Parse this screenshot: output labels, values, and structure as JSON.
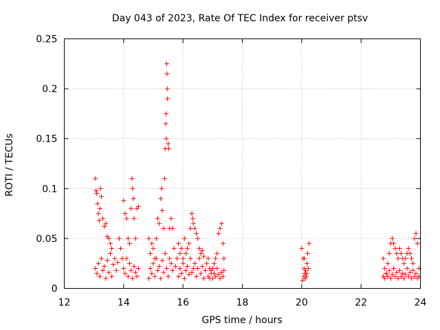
{
  "chart_data": {
    "type": "scatter",
    "title": "Day 043 of 2023, Rate Of TEC Index for receiver ptsv",
    "xlabel": "GPS time / hours",
    "ylabel": "ROTI / TECUs",
    "xlim": [
      12,
      24
    ],
    "ylim": [
      0,
      0.25
    ],
    "x_ticks": [
      12,
      14,
      16,
      18,
      20,
      22,
      24
    ],
    "x_tick_labels": [
      "12",
      "14",
      "16",
      "18",
      "20",
      "22",
      "24"
    ],
    "y_ticks": [
      0,
      0.05,
      0.1,
      0.15,
      0.2,
      0.25
    ],
    "y_tick_labels": [
      "0",
      "0.05",
      "0.1",
      "0.15",
      "0.2",
      "0.25"
    ],
    "grid": true,
    "legend": false,
    "marker": "plus",
    "series_color": "#ff0000",
    "series": [
      {
        "points": [
          [
            13.05,
            0.11
          ],
          [
            13.07,
            0.098
          ],
          [
            13.1,
            0.095
          ],
          [
            13.12,
            0.085
          ],
          [
            13.15,
            0.075
          ],
          [
            13.18,
            0.068
          ],
          [
            13.2,
            0.08
          ],
          [
            13.22,
            0.1
          ],
          [
            13.25,
            0.092
          ],
          [
            13.3,
            0.07
          ],
          [
            13.35,
            0.062
          ],
          [
            13.4,
            0.065
          ],
          [
            13.45,
            0.052
          ],
          [
            13.5,
            0.05
          ],
          [
            13.55,
            0.045
          ],
          [
            13.6,
            0.04
          ],
          [
            13.05,
            0.02
          ],
          [
            13.1,
            0.015
          ],
          [
            13.15,
            0.025
          ],
          [
            13.2,
            0.012
          ],
          [
            13.25,
            0.03
          ],
          [
            13.3,
            0.018
          ],
          [
            13.35,
            0.022
          ],
          [
            13.4,
            0.01
          ],
          [
            13.45,
            0.028
          ],
          [
            13.5,
            0.016
          ],
          [
            13.55,
            0.035
          ],
          [
            13.6,
            0.012
          ],
          [
            13.65,
            0.024
          ],
          [
            13.7,
            0.03
          ],
          [
            13.75,
            0.018
          ],
          [
            13.8,
            0.026
          ],
          [
            13.85,
            0.05
          ],
          [
            13.9,
            0.04
          ],
          [
            13.95,
            0.03
          ],
          [
            14.0,
            0.088
          ],
          [
            14.05,
            0.075
          ],
          [
            14.1,
            0.07
          ],
          [
            14.15,
            0.05
          ],
          [
            14.2,
            0.045
          ],
          [
            14.25,
            0.08
          ],
          [
            14.28,
            0.11
          ],
          [
            14.3,
            0.1
          ],
          [
            14.33,
            0.09
          ],
          [
            14.35,
            0.07
          ],
          [
            14.4,
            0.05
          ],
          [
            14.45,
            0.08
          ],
          [
            14.5,
            0.082
          ],
          [
            14.0,
            0.02
          ],
          [
            14.05,
            0.015
          ],
          [
            14.1,
            0.03
          ],
          [
            14.15,
            0.012
          ],
          [
            14.2,
            0.025
          ],
          [
            14.25,
            0.018
          ],
          [
            14.3,
            0.01
          ],
          [
            14.35,
            0.022
          ],
          [
            14.4,
            0.016
          ],
          [
            14.45,
            0.012
          ],
          [
            14.5,
            0.02
          ],
          [
            14.85,
            0.05
          ],
          [
            14.9,
            0.035
          ],
          [
            14.95,
            0.045
          ],
          [
            15.0,
            0.04
          ],
          [
            15.05,
            0.03
          ],
          [
            15.1,
            0.05
          ],
          [
            15.15,
            0.07
          ],
          [
            15.2,
            0.065
          ],
          [
            15.25,
            0.09
          ],
          [
            15.28,
            0.1
          ],
          [
            15.3,
            0.078
          ],
          [
            15.35,
            0.06
          ],
          [
            15.38,
            0.11
          ],
          [
            15.4,
            0.14
          ],
          [
            15.42,
            0.165
          ],
          [
            15.43,
            0.175
          ],
          [
            15.44,
            0.15
          ],
          [
            15.45,
            0.225
          ],
          [
            15.46,
            0.215
          ],
          [
            15.47,
            0.2
          ],
          [
            15.48,
            0.19
          ],
          [
            15.5,
            0.145
          ],
          [
            15.52,
            0.14
          ],
          [
            15.55,
            0.06
          ],
          [
            15.6,
            0.07
          ],
          [
            15.65,
            0.06
          ],
          [
            14.85,
            0.01
          ],
          [
            14.9,
            0.02
          ],
          [
            14.95,
            0.015
          ],
          [
            15.0,
            0.025
          ],
          [
            15.05,
            0.012
          ],
          [
            15.1,
            0.03
          ],
          [
            15.15,
            0.018
          ],
          [
            15.2,
            0.022
          ],
          [
            15.25,
            0.01
          ],
          [
            15.3,
            0.028
          ],
          [
            15.35,
            0.016
          ],
          [
            15.4,
            0.035
          ],
          [
            15.45,
            0.02
          ],
          [
            15.5,
            0.012
          ],
          [
            15.55,
            0.03
          ],
          [
            15.6,
            0.025
          ],
          [
            15.65,
            0.018
          ],
          [
            15.7,
            0.04
          ],
          [
            15.75,
            0.022
          ],
          [
            15.8,
            0.03
          ],
          [
            15.85,
            0.045
          ],
          [
            15.9,
            0.035
          ],
          [
            15.95,
            0.04
          ],
          [
            16.0,
            0.03
          ],
          [
            16.05,
            0.05
          ],
          [
            16.1,
            0.035
          ],
          [
            16.15,
            0.04
          ],
          [
            16.2,
            0.045
          ],
          [
            16.25,
            0.06
          ],
          [
            16.3,
            0.075
          ],
          [
            16.33,
            0.07
          ],
          [
            16.35,
            0.065
          ],
          [
            16.4,
            0.06
          ],
          [
            16.45,
            0.055
          ],
          [
            16.5,
            0.05
          ],
          [
            16.55,
            0.04
          ],
          [
            16.6,
            0.035
          ],
          [
            16.65,
            0.038
          ],
          [
            16.7,
            0.032
          ],
          [
            15.85,
            0.012
          ],
          [
            15.9,
            0.02
          ],
          [
            15.95,
            0.015
          ],
          [
            16.0,
            0.025
          ],
          [
            16.05,
            0.01
          ],
          [
            16.1,
            0.018
          ],
          [
            16.15,
            0.022
          ],
          [
            16.2,
            0.014
          ],
          [
            16.25,
            0.03
          ],
          [
            16.3,
            0.016
          ],
          [
            16.35,
            0.02
          ],
          [
            16.4,
            0.025
          ],
          [
            16.45,
            0.012
          ],
          [
            16.5,
            0.02
          ],
          [
            16.55,
            0.03
          ],
          [
            16.6,
            0.015
          ],
          [
            16.65,
            0.022
          ],
          [
            16.7,
            0.01
          ],
          [
            16.75,
            0.018
          ],
          [
            16.8,
            0.025
          ],
          [
            16.85,
            0.03
          ],
          [
            16.9,
            0.02
          ],
          [
            16.95,
            0.015
          ],
          [
            17.0,
            0.02
          ],
          [
            17.05,
            0.025
          ],
          [
            17.1,
            0.03
          ],
          [
            17.15,
            0.035
          ],
          [
            17.2,
            0.055
          ],
          [
            17.25,
            0.06
          ],
          [
            17.3,
            0.065
          ],
          [
            17.35,
            0.045
          ],
          [
            17.38,
            0.03
          ],
          [
            16.85,
            0.012
          ],
          [
            16.9,
            0.01
          ],
          [
            16.95,
            0.018
          ],
          [
            17.0,
            0.01
          ],
          [
            17.05,
            0.015
          ],
          [
            17.1,
            0.012
          ],
          [
            17.15,
            0.02
          ],
          [
            17.2,
            0.014
          ],
          [
            17.25,
            0.01
          ],
          [
            17.3,
            0.016
          ],
          [
            17.35,
            0.012
          ],
          [
            17.38,
            0.018
          ],
          [
            20.0,
            0.04
          ],
          [
            20.05,
            0.03
          ],
          [
            20.08,
            0.02
          ],
          [
            20.1,
            0.015
          ],
          [
            20.12,
            0.01
          ],
          [
            20.15,
            0.012
          ],
          [
            20.18,
            0.025
          ],
          [
            20.2,
            0.035
          ],
          [
            20.25,
            0.045
          ],
          [
            20.03,
            0.008
          ],
          [
            20.07,
            0.012
          ],
          [
            20.13,
            0.018
          ],
          [
            20.22,
            0.02
          ],
          [
            20.09,
            0.03
          ],
          [
            20.17,
            0.015
          ],
          [
            22.75,
            0.03
          ],
          [
            22.8,
            0.02
          ],
          [
            22.85,
            0.015
          ],
          [
            22.9,
            0.025
          ],
          [
            22.95,
            0.035
          ],
          [
            23.0,
            0.045
          ],
          [
            23.05,
            0.05
          ],
          [
            23.1,
            0.045
          ],
          [
            23.15,
            0.04
          ],
          [
            23.2,
            0.035
          ],
          [
            23.25,
            0.03
          ],
          [
            23.3,
            0.04
          ],
          [
            23.35,
            0.035
          ],
          [
            23.4,
            0.03
          ],
          [
            23.45,
            0.025
          ],
          [
            23.5,
            0.03
          ],
          [
            23.55,
            0.035
          ],
          [
            23.6,
            0.04
          ],
          [
            23.65,
            0.035
          ],
          [
            23.7,
            0.03
          ],
          [
            23.75,
            0.025
          ],
          [
            23.8,
            0.05
          ],
          [
            23.85,
            0.055
          ],
          [
            23.9,
            0.045
          ],
          [
            23.95,
            0.02
          ],
          [
            22.75,
            0.012
          ],
          [
            22.8,
            0.01
          ],
          [
            22.85,
            0.015
          ],
          [
            22.9,
            0.012
          ],
          [
            22.95,
            0.018
          ],
          [
            23.0,
            0.01
          ],
          [
            23.05,
            0.014
          ],
          [
            23.1,
            0.02
          ],
          [
            23.15,
            0.012
          ],
          [
            23.2,
            0.016
          ],
          [
            23.25,
            0.01
          ],
          [
            23.3,
            0.018
          ],
          [
            23.35,
            0.012
          ],
          [
            23.4,
            0.015
          ],
          [
            23.45,
            0.01
          ],
          [
            23.5,
            0.014
          ],
          [
            23.55,
            0.02
          ],
          [
            23.6,
            0.012
          ],
          [
            23.65,
            0.016
          ],
          [
            23.7,
            0.01
          ],
          [
            23.75,
            0.018
          ],
          [
            23.8,
            0.012
          ],
          [
            23.85,
            0.015
          ],
          [
            23.9,
            0.01
          ],
          [
            23.95,
            0.012
          ]
        ]
      }
    ]
  }
}
